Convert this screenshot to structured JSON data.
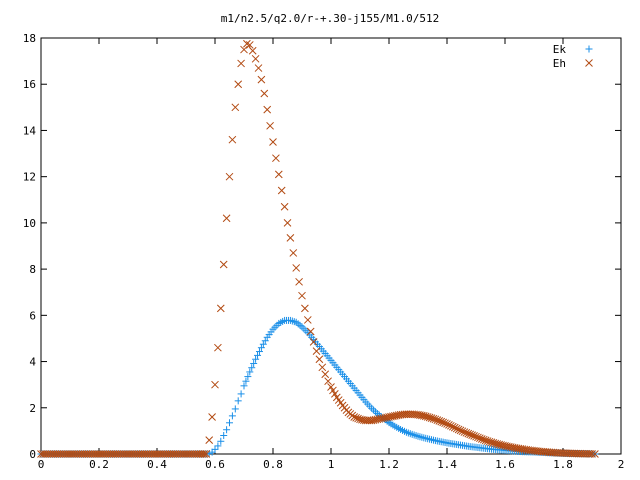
{
  "chart_data": {
    "type": "scatter",
    "title": "m1/n2.5/q2.0/r-+.30-j155/M1.0/512",
    "xlabel": "",
    "ylabel": "",
    "xlim": [
      0,
      2
    ],
    "ylim": [
      0,
      18
    ],
    "xticks": [
      "0",
      "0.2",
      "0.4",
      "0.6",
      "0.8",
      "1",
      "1.2",
      "1.4",
      "1.6",
      "1.8",
      "2"
    ],
    "yticks": [
      "0",
      "2",
      "4",
      "6",
      "8",
      "10",
      "12",
      "14",
      "16",
      "18"
    ],
    "grid": false,
    "legend_position": "top-right",
    "series": [
      {
        "name": "Ek",
        "marker": "plus",
        "color": "#1a8fe8",
        "x": [
          0.0,
          0.05,
          0.1,
          0.15,
          0.2,
          0.25,
          0.3,
          0.35,
          0.4,
          0.45,
          0.5,
          0.55,
          0.57,
          0.58,
          0.59,
          0.6,
          0.61,
          0.62,
          0.63,
          0.64,
          0.65,
          0.66,
          0.67,
          0.68,
          0.69,
          0.7,
          0.72,
          0.74,
          0.76,
          0.78,
          0.8,
          0.82,
          0.84,
          0.86,
          0.88,
          0.9,
          0.92,
          0.94,
          0.96,
          0.98,
          1.0,
          1.02,
          1.04,
          1.06,
          1.08,
          1.1,
          1.12,
          1.14,
          1.16,
          1.18,
          1.2,
          1.22,
          1.24,
          1.26,
          1.28,
          1.3,
          1.32,
          1.34,
          1.36,
          1.38,
          1.4,
          1.42,
          1.44,
          1.46,
          1.48,
          1.5,
          1.52,
          1.54,
          1.56,
          1.58,
          1.6,
          1.62,
          1.64,
          1.66,
          1.68,
          1.7,
          1.72,
          1.74,
          1.76,
          1.78,
          1.8,
          1.82,
          1.84,
          1.86,
          1.88,
          1.9,
          1.91
        ],
        "y": [
          0,
          0,
          0,
          0,
          0,
          0,
          0,
          0,
          0,
          0,
          0,
          0,
          0,
          0.02,
          0.08,
          0.2,
          0.35,
          0.55,
          0.8,
          1.05,
          1.35,
          1.65,
          1.95,
          2.3,
          2.6,
          2.95,
          3.55,
          4.1,
          4.6,
          5.05,
          5.4,
          5.65,
          5.78,
          5.78,
          5.7,
          5.5,
          5.25,
          4.95,
          4.65,
          4.35,
          4.05,
          3.75,
          3.45,
          3.15,
          2.85,
          2.55,
          2.25,
          1.98,
          1.75,
          1.55,
          1.36,
          1.2,
          1.06,
          0.94,
          0.85,
          0.77,
          0.7,
          0.64,
          0.58,
          0.53,
          0.48,
          0.44,
          0.4,
          0.36,
          0.32,
          0.29,
          0.26,
          0.23,
          0.2,
          0.18,
          0.16,
          0.14,
          0.12,
          0.1,
          0.09,
          0.08,
          0.07,
          0.06,
          0.05,
          0.04,
          0.03,
          0.025,
          0.02,
          0.015,
          0.01,
          0.005,
          0.0
        ]
      },
      {
        "name": "Eh",
        "marker": "cross",
        "color": "#b24a12",
        "x": [
          0.0,
          0.05,
          0.1,
          0.15,
          0.2,
          0.25,
          0.3,
          0.35,
          0.4,
          0.45,
          0.5,
          0.55,
          0.57,
          0.58,
          0.59,
          0.6,
          0.61,
          0.62,
          0.63,
          0.64,
          0.65,
          0.66,
          0.67,
          0.68,
          0.69,
          0.7,
          0.71,
          0.72,
          0.73,
          0.74,
          0.75,
          0.76,
          0.77,
          0.78,
          0.79,
          0.8,
          0.81,
          0.82,
          0.83,
          0.84,
          0.85,
          0.86,
          0.87,
          0.88,
          0.89,
          0.9,
          0.91,
          0.92,
          0.93,
          0.94,
          0.95,
          0.96,
          0.97,
          0.98,
          0.99,
          1.0,
          1.02,
          1.04,
          1.06,
          1.08,
          1.1,
          1.12,
          1.14,
          1.16,
          1.18,
          1.2,
          1.22,
          1.24,
          1.26,
          1.28,
          1.3,
          1.32,
          1.34,
          1.36,
          1.38,
          1.4,
          1.42,
          1.44,
          1.46,
          1.48,
          1.5,
          1.52,
          1.54,
          1.56,
          1.58,
          1.6,
          1.62,
          1.64,
          1.66,
          1.68,
          1.7,
          1.72,
          1.74,
          1.76,
          1.78,
          1.8,
          1.82,
          1.84,
          1.86,
          1.88,
          1.9,
          1.91
        ],
        "y": [
          0,
          0,
          0,
          0,
          0,
          0,
          0,
          0,
          0,
          0,
          0,
          0,
          0,
          0.6,
          1.6,
          3.0,
          4.6,
          6.3,
          8.2,
          10.2,
          12.0,
          13.6,
          15.0,
          16.0,
          16.9,
          17.5,
          17.75,
          17.7,
          17.45,
          17.1,
          16.7,
          16.2,
          15.6,
          14.9,
          14.2,
          13.5,
          12.8,
          12.1,
          11.4,
          10.7,
          10.0,
          9.35,
          8.7,
          8.05,
          7.45,
          6.85,
          6.3,
          5.8,
          5.3,
          4.85,
          4.45,
          4.1,
          3.75,
          3.45,
          3.15,
          2.9,
          2.45,
          2.1,
          1.8,
          1.6,
          1.5,
          1.45,
          1.45,
          1.5,
          1.55,
          1.6,
          1.65,
          1.7,
          1.72,
          1.72,
          1.7,
          1.65,
          1.58,
          1.5,
          1.4,
          1.3,
          1.18,
          1.06,
          0.95,
          0.85,
          0.75,
          0.65,
          0.56,
          0.48,
          0.41,
          0.35,
          0.3,
          0.25,
          0.21,
          0.17,
          0.14,
          0.11,
          0.09,
          0.07,
          0.05,
          0.04,
          0.03,
          0.02,
          0.015,
          0.01,
          0.005,
          0.0
        ]
      }
    ]
  }
}
